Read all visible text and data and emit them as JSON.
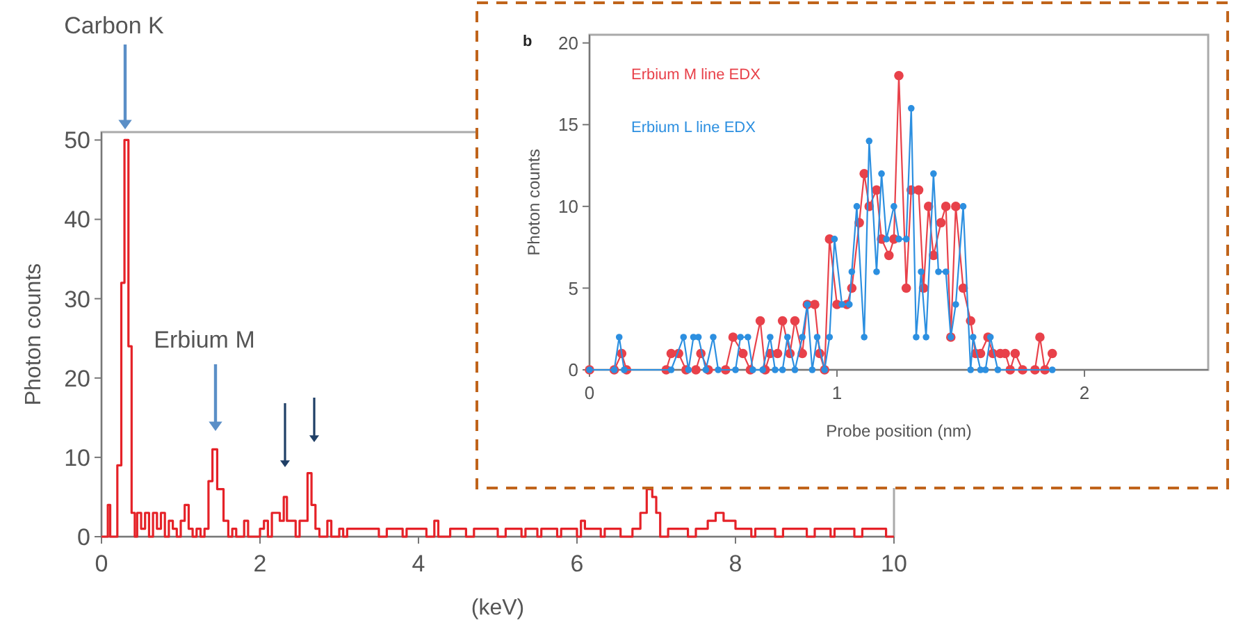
{
  "chart_data": [
    {
      "type": "step",
      "xlabel": "(keV)",
      "ylabel": "Photon counts",
      "xlim": [
        0,
        10
      ],
      "ylim": [
        0,
        51
      ],
      "xticks": [
        0,
        2,
        4,
        6,
        8,
        10
      ],
      "yticks": [
        0,
        10,
        20,
        30,
        40,
        50
      ],
      "annotations": [
        "Carbon K",
        "Erbium M"
      ],
      "series": [
        {
          "color": "#e52228",
          "x": [
            0,
            0.05,
            0.08,
            0.11,
            0.2,
            0.25,
            0.29,
            0.34,
            0.38,
            0.42,
            0.45,
            0.5,
            0.55,
            0.6,
            0.65,
            0.7,
            0.75,
            0.8,
            0.85,
            0.9,
            0.95,
            1.0,
            1.05,
            1.1,
            1.15,
            1.2,
            1.25,
            1.3,
            1.35,
            1.4,
            1.46,
            1.54,
            1.6,
            1.65,
            1.7,
            1.8,
            1.85,
            1.95,
            2.0,
            2.05,
            2.1,
            2.15,
            2.25,
            2.3,
            2.34,
            2.45,
            2.5,
            2.6,
            2.65,
            2.7,
            2.75,
            2.85,
            2.9,
            3.0,
            3.05,
            3.1,
            3.5,
            3.6,
            3.8,
            3.85,
            4.1,
            4.2,
            4.25,
            4.4,
            4.6,
            4.7,
            5.0,
            5.1,
            5.3,
            5.35,
            5.5,
            5.55,
            5.75,
            5.8,
            6.0,
            6.05,
            6.1,
            6.3,
            6.35,
            6.55,
            6.7,
            6.8,
            6.88,
            6.95,
            7.0,
            7.05,
            7.15,
            7.4,
            7.5,
            7.65,
            7.75,
            7.85,
            8.0,
            8.2,
            8.25,
            8.5,
            8.6,
            8.9,
            9.0,
            9.2,
            9.25,
            9.5,
            9.6,
            9.9,
            10
          ],
          "values": [
            0,
            0,
            4,
            0,
            9,
            32,
            50,
            24,
            3,
            0,
            3,
            1,
            3,
            0,
            3,
            1,
            3,
            0,
            2,
            1,
            0,
            2,
            4,
            1,
            0,
            1,
            0,
            1,
            7,
            11,
            6,
            2,
            0,
            1,
            0,
            2,
            0,
            0,
            1,
            2,
            0,
            3,
            2,
            5,
            2,
            0,
            2,
            8,
            4,
            1,
            0,
            2,
            0,
            1,
            0,
            1,
            0,
            1,
            0,
            1,
            0,
            2,
            0,
            1,
            0,
            1,
            0,
            1,
            0,
            1,
            0,
            1,
            0,
            1,
            0,
            2,
            1,
            0,
            1,
            0,
            1,
            3,
            6,
            5,
            3,
            0,
            1,
            0,
            1,
            2,
            3,
            2,
            1,
            0,
            1,
            0,
            1,
            0,
            1,
            0,
            1,
            0,
            1,
            0,
            0
          ]
        }
      ]
    },
    {
      "type": "line",
      "xlabel": "Probe position (nm)",
      "ylabel": "Photon counts",
      "xlim": [
        0,
        2.5
      ],
      "ylim": [
        0,
        20.5
      ],
      "xticks": [
        0,
        1,
        2
      ],
      "yticks": [
        0,
        5,
        10,
        15,
        20
      ],
      "legend": "top left",
      "marker": "circle",
      "line_style": "solid",
      "annotations": [
        "b"
      ],
      "series": [
        {
          "name": "Erbium M line EDX",
          "color": "#e8414a",
          "x": [
            0,
            0.1,
            0.13,
            0.15,
            0.31,
            0.33,
            0.36,
            0.39,
            0.43,
            0.45,
            0.48,
            0.55,
            0.58,
            0.62,
            0.65,
            0.69,
            0.71,
            0.73,
            0.76,
            0.78,
            0.81,
            0.83,
            0.86,
            0.88,
            0.91,
            0.93,
            0.95,
            0.97,
            1.0,
            1.04,
            1.06,
            1.09,
            1.11,
            1.13,
            1.16,
            1.18,
            1.21,
            1.23,
            1.25,
            1.28,
            1.3,
            1.33,
            1.35,
            1.37,
            1.39,
            1.42,
            1.44,
            1.46,
            1.48,
            1.51,
            1.54,
            1.56,
            1.58,
            1.61,
            1.63,
            1.66,
            1.68,
            1.7,
            1.72,
            1.75,
            1.8,
            1.82,
            1.84,
            1.87
          ],
          "values": [
            0,
            0,
            1,
            0,
            0,
            1,
            1,
            0,
            0,
            1,
            0,
            0,
            2,
            1,
            0,
            3,
            0,
            1,
            1,
            3,
            1,
            3,
            1,
            4,
            4,
            1,
            0,
            8,
            4,
            4,
            5,
            9,
            12,
            10,
            11,
            8,
            7,
            8,
            18,
            5,
            11,
            11,
            5,
            10,
            7,
            9,
            10,
            2,
            10,
            5,
            3,
            1,
            1,
            2,
            1,
            1,
            1,
            0,
            1,
            0,
            0,
            2,
            0,
            1
          ]
        },
        {
          "name": "Erbium L line EDX",
          "color": "#2c8fe0",
          "x": [
            0,
            0.1,
            0.12,
            0.14,
            0.33,
            0.38,
            0.4,
            0.42,
            0.44,
            0.47,
            0.5,
            0.52,
            0.59,
            0.61,
            0.64,
            0.66,
            0.7,
            0.73,
            0.75,
            0.78,
            0.8,
            0.83,
            0.86,
            0.88,
            0.9,
            0.92,
            0.95,
            0.97,
            0.99,
            1.02,
            1.05,
            1.06,
            1.08,
            1.11,
            1.13,
            1.16,
            1.18,
            1.2,
            1.23,
            1.25,
            1.28,
            1.3,
            1.32,
            1.34,
            1.36,
            1.39,
            1.41,
            1.44,
            1.46,
            1.48,
            1.51,
            1.54,
            1.55,
            1.58,
            1.6,
            1.62,
            1.65,
            1.87
          ],
          "values": [
            0,
            0,
            2,
            0,
            0,
            2,
            0,
            2,
            2,
            0,
            2,
            0,
            0,
            2,
            2,
            0,
            0,
            2,
            0,
            0,
            2,
            0,
            2,
            4,
            0,
            2,
            0,
            2,
            8,
            4,
            4,
            6,
            10,
            2,
            14,
            6,
            12,
            8,
            10,
            8,
            8,
            16,
            2,
            6,
            2,
            12,
            6,
            6,
            2,
            4,
            10,
            0,
            2,
            0,
            0,
            2,
            0,
            0
          ]
        }
      ]
    }
  ]
}
